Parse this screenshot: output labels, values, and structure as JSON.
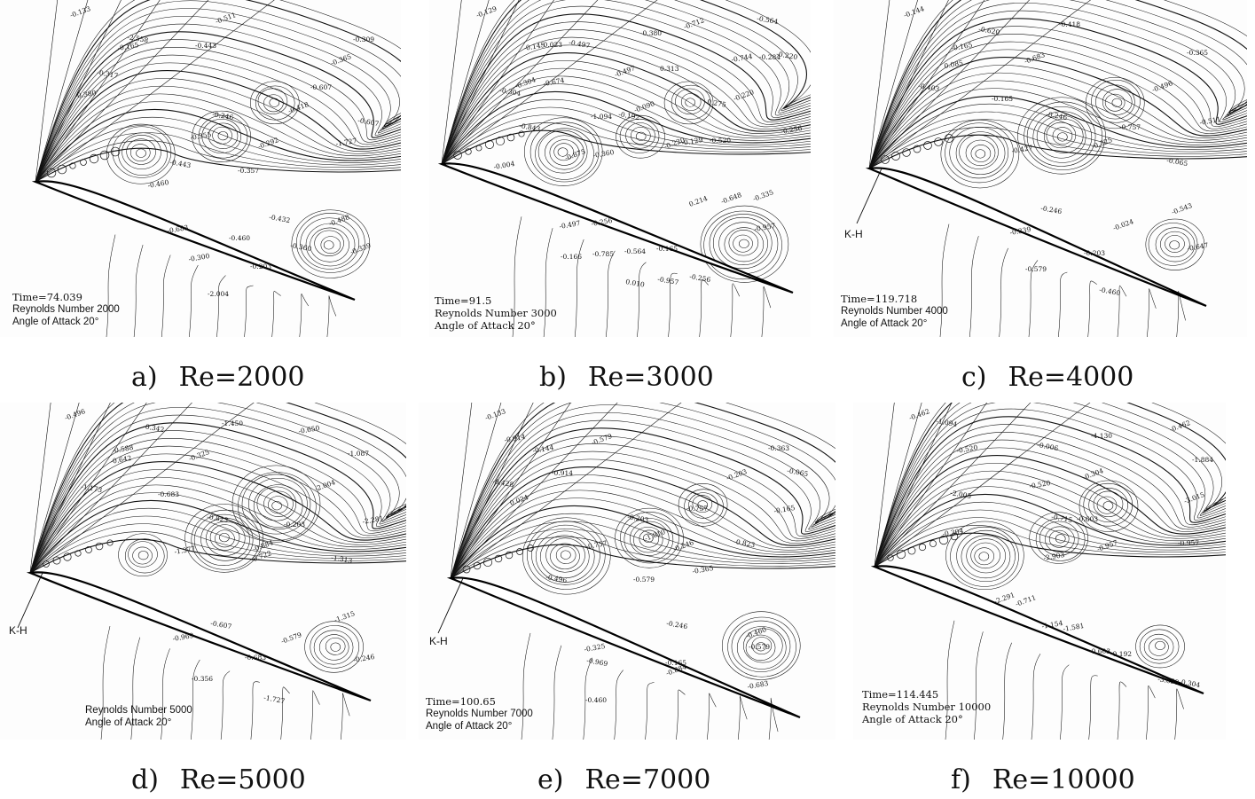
{
  "panels": [
    {
      "caption_tag": "a)",
      "caption_text": "Re=2000",
      "time": "Time=74.039",
      "reynolds": "Reynolds Number 2000",
      "angle": "Angle of Attack 20°",
      "kh": "",
      "labels": [
        "-0.133",
        "-0.165",
        "-0.203",
        "-0.246",
        "-0.292",
        "-0.300",
        "-0.309",
        "-0.317",
        "-0.339",
        "-0.355",
        "-0.357",
        "-0.360",
        "-0.365",
        "-0.380",
        "-0.460",
        "-0.443",
        "-0.511",
        "-0.683",
        "-0.607",
        "-0.607",
        "-0.488",
        "-0.460",
        "-0.443",
        "-0.432",
        "-0.418",
        "-1.727",
        "-2.004",
        "-2.558"
      ]
    },
    {
      "caption_tag": "b)",
      "caption_text": "Re=3000",
      "time": "Time=91.5",
      "reynolds": "Reynolds Number 3000",
      "angle": "Angle of Attack 20°",
      "kh": "",
      "labels": [
        "-0.129",
        "-0.145",
        "-0.165",
        "-0.192",
        "-0.220",
        "-0.256",
        "-0.284",
        "-0.304",
        "-0.335",
        "-0.360",
        "-0.380",
        "-0.256",
        "-0.220",
        "-0.256",
        "-0.564",
        "-0.497",
        "-0.497",
        "-0.497",
        "-0.520",
        "-0.564",
        "-0.648",
        "-0.674",
        "-1.094",
        "-0.957",
        "-0.712",
        "-0.744",
        "-0.785",
        "-0.843",
        "-0.875",
        "-0.957",
        "0.313",
        "0.275",
        "0.214",
        "-0.004",
        "-0.023",
        "0.010",
        "-0.090",
        "-0.129",
        "-0.166",
        "-0.220",
        "-0.304"
      ]
    },
    {
      "caption_tag": "c)",
      "caption_text": "Re=4000",
      "time": "Time=119.718",
      "reynolds": "Reynolds Number 4000",
      "angle": "Angle of Attack 20°",
      "kh": "K-H",
      "labels": [
        "-0.144",
        "-0.165",
        "-0.203",
        "-0.246",
        "-0.325",
        "-0.339",
        "-0.365",
        "-0.403",
        "-0.543",
        "-0.427",
        "-0.418",
        "-0.460",
        "-0.496",
        "-0.511",
        "-0.579",
        "-0.620",
        "-0.683",
        "-0.647",
        "-0.757",
        "-0.065",
        "-0.024",
        "0.085",
        "-0.165",
        "-0.246"
      ]
    },
    {
      "caption_tag": "d)",
      "caption_text": "Re=5000",
      "time": "",
      "reynolds": "Reynolds Number 5000",
      "angle": "Angle of Attack 20°",
      "kh": "K-H",
      "labels": [
        "-0.496",
        "-0.588",
        "-0.683",
        "-0.823",
        "-0.884",
        "-0.969",
        "-1.087",
        "-1.173",
        "-1.315",
        "-1.377",
        "-1.450",
        "-1.727",
        "-2.004",
        "-2.281",
        "-0.356",
        "-0.342",
        "-0.325",
        "-0.246",
        "-0.203",
        "-1.313",
        "-0.579",
        "-0.642",
        "-0.683",
        "-0.607",
        "-0.722",
        "-0.650"
      ]
    },
    {
      "caption_tag": "e)",
      "caption_text": "Re=7000",
      "time": "Time=100.65",
      "reynolds": "Reynolds Number 7000",
      "angle": "Angle of Attack 20°",
      "kh": "K-H",
      "labels": [
        "-0.133",
        "-0.144",
        "-0.165",
        "-0.203",
        "-0.246",
        "-0.325",
        "-0.363",
        "-0.428",
        "-0.460",
        "-0.757",
        "-0.579",
        "-0.246",
        "-0.203",
        "-0.165",
        "-0.460",
        "-0.496",
        "-0.579",
        "-0.683",
        "-0.757",
        "-0.823",
        "-0.884",
        "-0.914",
        "-0.914",
        "-0.969",
        "-1.010",
        "-0.365",
        "-0.579",
        "-0.065",
        "0.024"
      ]
    },
    {
      "caption_tag": "f)",
      "caption_text": "Re=10000",
      "time": "Time=114.445",
      "reynolds": "Reynolds Number 10000",
      "angle": "Angle of Attack 20°",
      "kh": "",
      "labels": [
        "-0.462",
        "-0.520",
        "-0.603",
        "-0.715",
        "-0.957",
        "-1.154",
        "-1.884",
        "-2.005",
        "-2.291",
        "-2.903",
        "-4.130",
        "-3.659",
        "-3.015",
        "-0.304",
        "-0.192",
        "-0.006",
        "-0.304",
        "-1.581",
        "-0.957",
        "-1.094",
        "-0.711",
        "-0.520",
        "-0.603",
        "-0.304",
        "-0.462"
      ]
    }
  ]
}
